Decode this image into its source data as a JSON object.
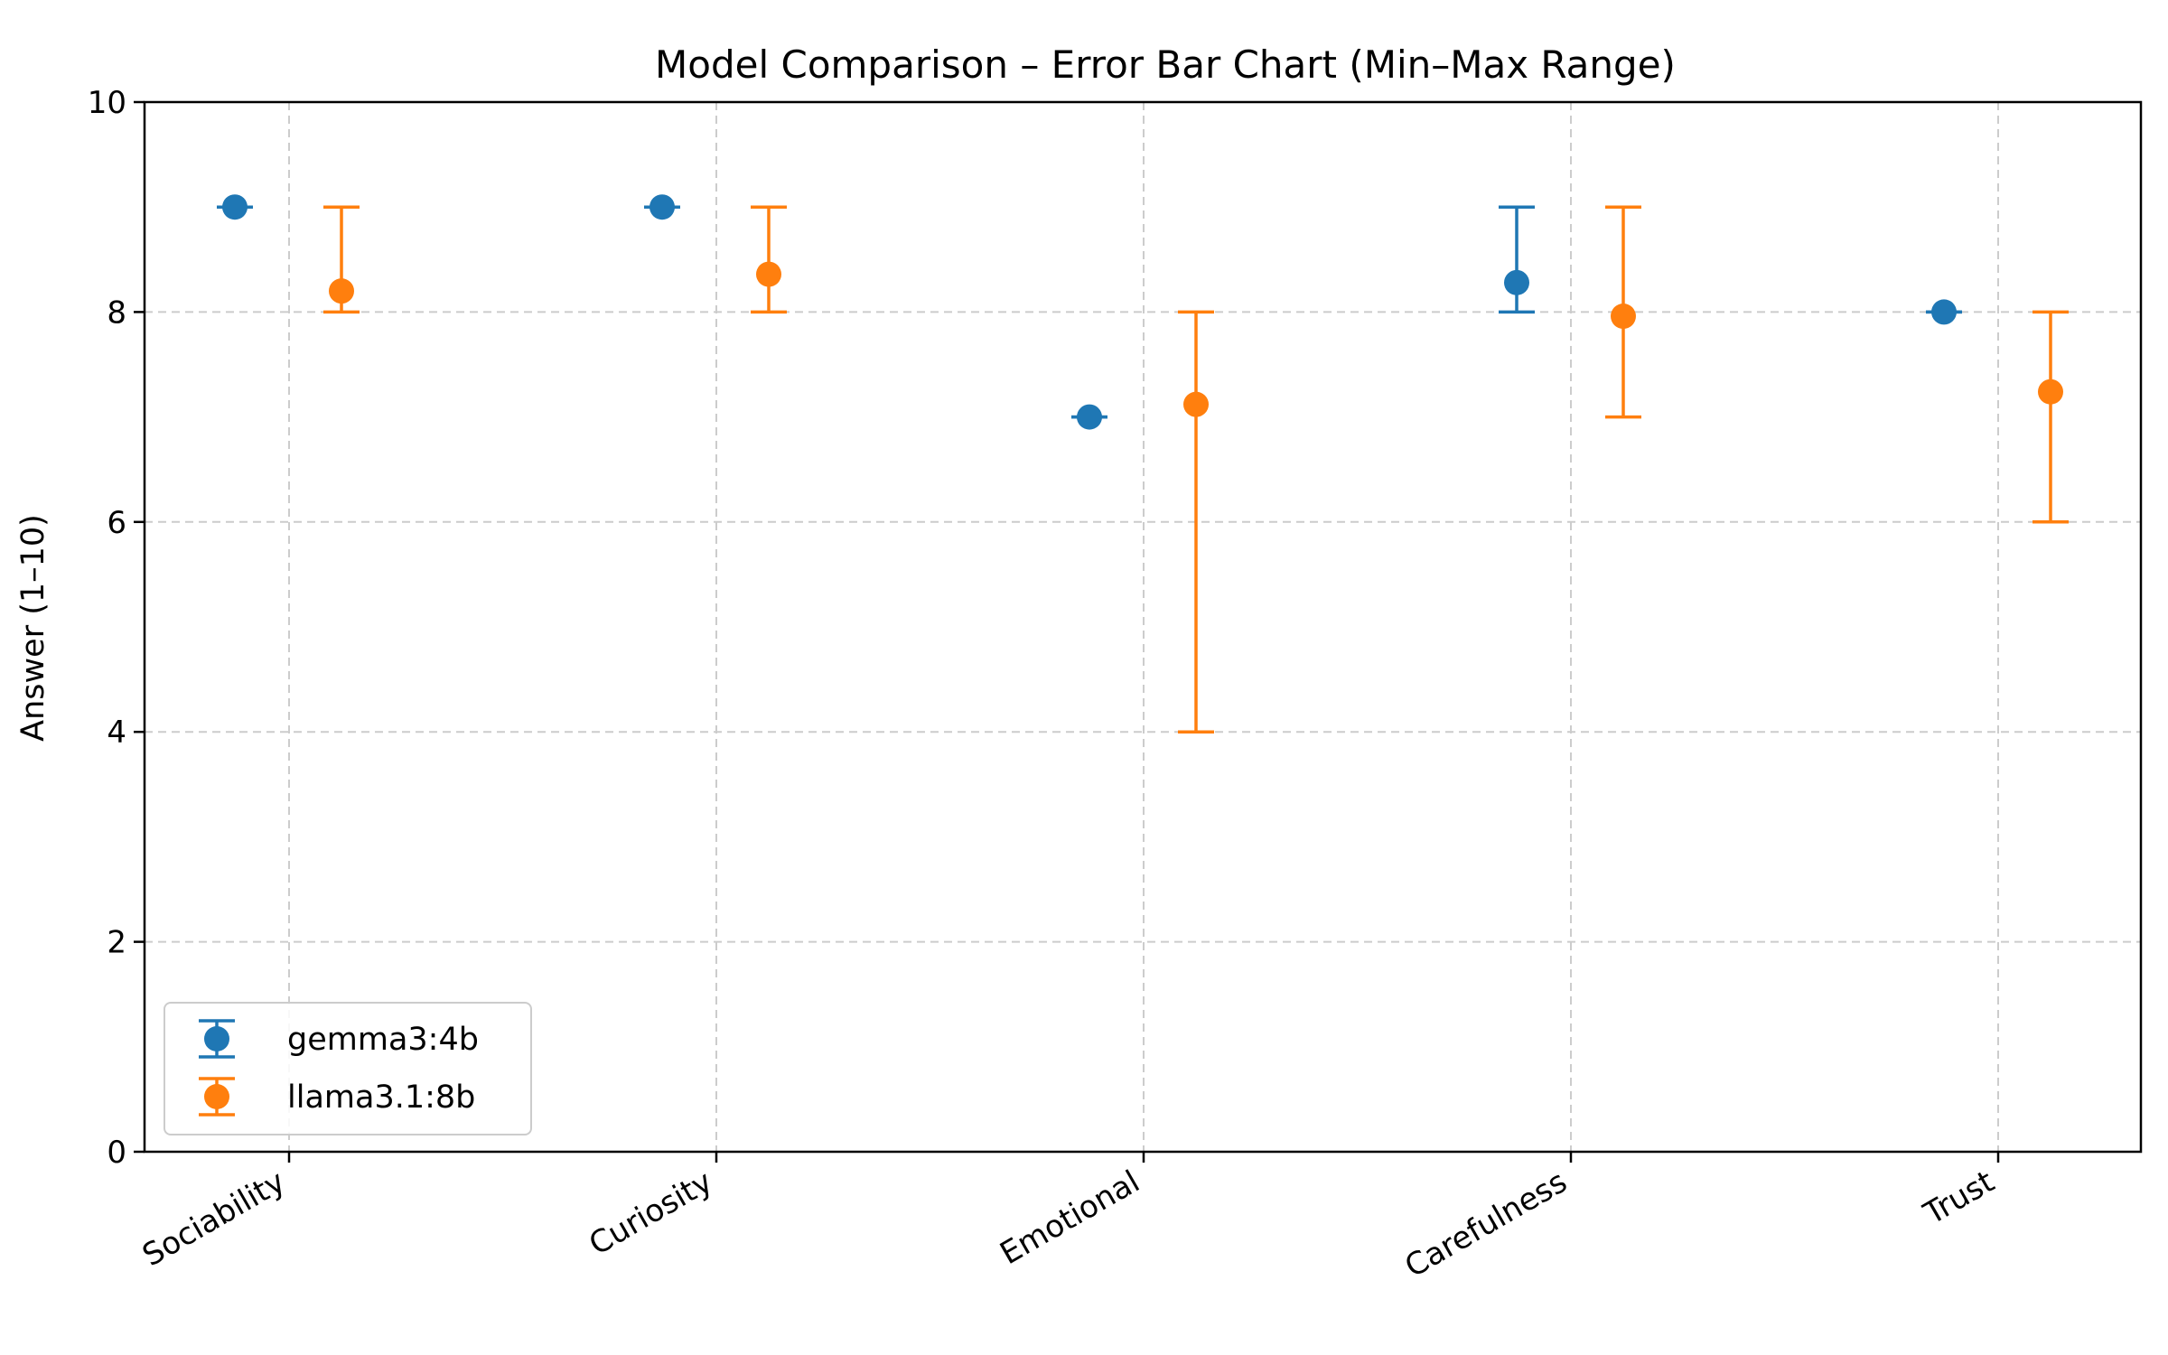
{
  "chart_data": {
    "type": "errorbar",
    "title": "Model Comparison – Error Bar Chart (Min–Max Range)",
    "xlabel": "",
    "ylabel": "Answer (1–10)",
    "ylim": [
      0,
      10
    ],
    "yticks": [
      0,
      2,
      4,
      6,
      8,
      10
    ],
    "grid": true,
    "legend_position": "lower-left",
    "categories": [
      "Sociability",
      "Curiosity",
      "Emotional",
      "Carefulness",
      "Trust"
    ],
    "series": [
      {
        "name": "gemma3:4b",
        "color": "#1f77b4",
        "values": [
          9.0,
          9.0,
          7.0,
          8.28,
          8.0
        ],
        "min": [
          9,
          9,
          7,
          8,
          8
        ],
        "max": [
          9,
          9,
          7,
          9,
          8
        ]
      },
      {
        "name": "llama3.1:8b",
        "color": "#ff7f0e",
        "values": [
          8.2,
          8.36,
          7.12,
          7.96,
          7.24
        ],
        "min": [
          8,
          8,
          4,
          7,
          6
        ],
        "max": [
          9,
          9,
          8,
          9,
          8
        ]
      }
    ]
  }
}
